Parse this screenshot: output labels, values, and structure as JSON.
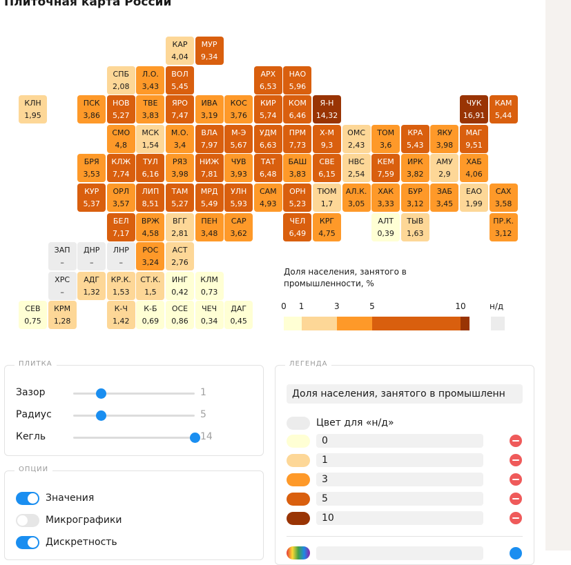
{
  "title": "Плиточная карта России",
  "tiles": [
    {
      "code": "КАР",
      "value": "4,04",
      "col": 5,
      "row": 0,
      "fill": "#fdd797"
    },
    {
      "code": "МУР",
      "value": "9,34",
      "col": 6,
      "row": 0,
      "fill": "#d95f0e",
      "dark": true
    },
    {
      "code": "СПБ",
      "value": "2,08",
      "col": 3,
      "row": 1,
      "fill": "#fdd797"
    },
    {
      "code": "Л.О.",
      "value": "3,43",
      "col": 4,
      "row": 1,
      "fill": "#fe9929"
    },
    {
      "code": "ВОЛ",
      "value": "5,45",
      "col": 5,
      "row": 1,
      "fill": "#d95f0e",
      "dark": true
    },
    {
      "code": "АРХ",
      "value": "6,53",
      "col": 8,
      "row": 1,
      "fill": "#d95f0e",
      "dark": true
    },
    {
      "code": "НАО",
      "value": "5,96",
      "col": 9,
      "row": 1,
      "fill": "#d95f0e",
      "dark": true
    },
    {
      "code": "КЛН",
      "value": "1,95",
      "col": 0,
      "row": 2,
      "fill": "#fdd797"
    },
    {
      "code": "ПСК",
      "value": "3,86",
      "col": 2,
      "row": 2,
      "fill": "#fe9929"
    },
    {
      "code": "НОВ",
      "value": "5,27",
      "col": 3,
      "row": 2,
      "fill": "#d95f0e",
      "dark": true
    },
    {
      "code": "ТВЕ",
      "value": "3,83",
      "col": 4,
      "row": 2,
      "fill": "#fe9929"
    },
    {
      "code": "ЯРО",
      "value": "7,47",
      "col": 5,
      "row": 2,
      "fill": "#d95f0e",
      "dark": true
    },
    {
      "code": "ИВА",
      "value": "3,19",
      "col": 6,
      "row": 2,
      "fill": "#fe9929"
    },
    {
      "code": "КОС",
      "value": "3,76",
      "col": 7,
      "row": 2,
      "fill": "#fe9929"
    },
    {
      "code": "КИР",
      "value": "5,74",
      "col": 8,
      "row": 2,
      "fill": "#d95f0e",
      "dark": true
    },
    {
      "code": "КОМ",
      "value": "6,46",
      "col": 9,
      "row": 2,
      "fill": "#d95f0e",
      "dark": true
    },
    {
      "code": "Я-Н",
      "value": "14,32",
      "col": 10,
      "row": 2,
      "fill": "#993404",
      "dark": true
    },
    {
      "code": "ЧУК",
      "value": "16,91",
      "col": 15,
      "row": 2,
      "fill": "#993404",
      "dark": true
    },
    {
      "code": "КАМ",
      "value": "5,44",
      "col": 16,
      "row": 2,
      "fill": "#d95f0e",
      "dark": true
    },
    {
      "code": "СМО",
      "value": "4,8",
      "col": 3,
      "row": 3,
      "fill": "#fe9929"
    },
    {
      "code": "МСК",
      "value": "1,54",
      "col": 4,
      "row": 3,
      "fill": "#fdd797"
    },
    {
      "code": "М.О.",
      "value": "3,4",
      "col": 5,
      "row": 3,
      "fill": "#fe9929"
    },
    {
      "code": "ВЛА",
      "value": "7,97",
      "col": 6,
      "row": 3,
      "fill": "#d95f0e",
      "dark": true
    },
    {
      "code": "М-Э",
      "value": "5,67",
      "col": 7,
      "row": 3,
      "fill": "#d95f0e",
      "dark": true
    },
    {
      "code": "УДМ",
      "value": "6,63",
      "col": 8,
      "row": 3,
      "fill": "#d95f0e",
      "dark": true
    },
    {
      "code": "ПРМ",
      "value": "7,73",
      "col": 9,
      "row": 3,
      "fill": "#d95f0e",
      "dark": true
    },
    {
      "code": "Х-М",
      "value": "9,3",
      "col": 10,
      "row": 3,
      "fill": "#d95f0e",
      "dark": true
    },
    {
      "code": "ОМС",
      "value": "2,43",
      "col": 11,
      "row": 3,
      "fill": "#fdd797"
    },
    {
      "code": "ТОМ",
      "value": "3,6",
      "col": 12,
      "row": 3,
      "fill": "#fe9929"
    },
    {
      "code": "КРА",
      "value": "5,43",
      "col": 13,
      "row": 3,
      "fill": "#d95f0e",
      "dark": true
    },
    {
      "code": "ЯКУ",
      "value": "3,98",
      "col": 14,
      "row": 3,
      "fill": "#fe9929"
    },
    {
      "code": "МАГ",
      "value": "9,51",
      "col": 15,
      "row": 3,
      "fill": "#d95f0e",
      "dark": true
    },
    {
      "code": "БРЯ",
      "value": "3,53",
      "col": 2,
      "row": 4,
      "fill": "#fe9929"
    },
    {
      "code": "КЛЖ",
      "value": "7,74",
      "col": 3,
      "row": 4,
      "fill": "#d95f0e",
      "dark": true
    },
    {
      "code": "ТУЛ",
      "value": "6,16",
      "col": 4,
      "row": 4,
      "fill": "#d95f0e",
      "dark": true
    },
    {
      "code": "РЯЗ",
      "value": "3,98",
      "col": 5,
      "row": 4,
      "fill": "#fe9929"
    },
    {
      "code": "НИЖ",
      "value": "7,81",
      "col": 6,
      "row": 4,
      "fill": "#d95f0e",
      "dark": true
    },
    {
      "code": "ЧУВ",
      "value": "3,93",
      "col": 7,
      "row": 4,
      "fill": "#fe9929"
    },
    {
      "code": "ТАТ",
      "value": "6,48",
      "col": 8,
      "row": 4,
      "fill": "#d95f0e",
      "dark": true
    },
    {
      "code": "БАШ",
      "value": "3,83",
      "col": 9,
      "row": 4,
      "fill": "#fe9929"
    },
    {
      "code": "СВЕ",
      "value": "6,15",
      "col": 10,
      "row": 4,
      "fill": "#d95f0e",
      "dark": true
    },
    {
      "code": "НВС",
      "value": "2,54",
      "col": 11,
      "row": 4,
      "fill": "#fdd797"
    },
    {
      "code": "КЕМ",
      "value": "7,59",
      "col": 12,
      "row": 4,
      "fill": "#d95f0e",
      "dark": true
    },
    {
      "code": "ИРК",
      "value": "3,82",
      "col": 13,
      "row": 4,
      "fill": "#fe9929"
    },
    {
      "code": "АМУ",
      "value": "2,9",
      "col": 14,
      "row": 4,
      "fill": "#fdd797"
    },
    {
      "code": "ХАБ",
      "value": "4,06",
      "col": 15,
      "row": 4,
      "fill": "#fe9929"
    },
    {
      "code": "КУР",
      "value": "5,37",
      "col": 2,
      "row": 5,
      "fill": "#d95f0e",
      "dark": true
    },
    {
      "code": "ОРЛ",
      "value": "3,57",
      "col": 3,
      "row": 5,
      "fill": "#fe9929"
    },
    {
      "code": "ЛИП",
      "value": "8,51",
      "col": 4,
      "row": 5,
      "fill": "#d95f0e",
      "dark": true
    },
    {
      "code": "ТАМ",
      "value": "5,27",
      "col": 5,
      "row": 5,
      "fill": "#d95f0e",
      "dark": true
    },
    {
      "code": "МРД",
      "value": "5,49",
      "col": 6,
      "row": 5,
      "fill": "#d95f0e",
      "dark": true
    },
    {
      "code": "УЛН",
      "value": "5,93",
      "col": 7,
      "row": 5,
      "fill": "#d95f0e",
      "dark": true
    },
    {
      "code": "САМ",
      "value": "4,93",
      "col": 8,
      "row": 5,
      "fill": "#fe9929"
    },
    {
      "code": "ОРН",
      "value": "5,23",
      "col": 9,
      "row": 5,
      "fill": "#d95f0e",
      "dark": true
    },
    {
      "code": "ТЮМ",
      "value": "1,7",
      "col": 10,
      "row": 5,
      "fill": "#fdd797"
    },
    {
      "code": "АЛ.К.",
      "value": "3,05",
      "col": 11,
      "row": 5,
      "fill": "#fe9929"
    },
    {
      "code": "ХАК",
      "value": "3,33",
      "col": 12,
      "row": 5,
      "fill": "#fe9929"
    },
    {
      "code": "БУР",
      "value": "3,12",
      "col": 13,
      "row": 5,
      "fill": "#fe9929"
    },
    {
      "code": "ЗАБ",
      "value": "3,45",
      "col": 14,
      "row": 5,
      "fill": "#fe9929"
    },
    {
      "code": "ЕАО",
      "value": "1,99",
      "col": 15,
      "row": 5,
      "fill": "#fdd797"
    },
    {
      "code": "САХ",
      "value": "3,58",
      "col": 16,
      "row": 5,
      "fill": "#fe9929"
    },
    {
      "code": "БЕЛ",
      "value": "7,17",
      "col": 3,
      "row": 6,
      "fill": "#d95f0e",
      "dark": true
    },
    {
      "code": "ВРЖ",
      "value": "4,58",
      "col": 4,
      "row": 6,
      "fill": "#fe9929"
    },
    {
      "code": "ВГГ",
      "value": "2,81",
      "col": 5,
      "row": 6,
      "fill": "#fdd797"
    },
    {
      "code": "ПЕН",
      "value": "3,48",
      "col": 6,
      "row": 6,
      "fill": "#fe9929"
    },
    {
      "code": "САР",
      "value": "3,62",
      "col": 7,
      "row": 6,
      "fill": "#fe9929"
    },
    {
      "code": "ЧЕЛ",
      "value": "6,49",
      "col": 9,
      "row": 6,
      "fill": "#d95f0e",
      "dark": true
    },
    {
      "code": "КРГ",
      "value": "4,75",
      "col": 10,
      "row": 6,
      "fill": "#fe9929"
    },
    {
      "code": "АЛТ",
      "value": "0,39",
      "col": 12,
      "row": 6,
      "fill": "#ffffd4"
    },
    {
      "code": "ТЫВ",
      "value": "1,63",
      "col": 13,
      "row": 6,
      "fill": "#fdd797"
    },
    {
      "code": "ПР.К.",
      "value": "3,12",
      "col": 16,
      "row": 6,
      "fill": "#fe9929"
    },
    {
      "code": "ЗАП",
      "value": "–",
      "col": 1,
      "row": 7,
      "fill": "#ececec"
    },
    {
      "code": "ДНР",
      "value": "–",
      "col": 2,
      "row": 7,
      "fill": "#ececec"
    },
    {
      "code": "ЛНР",
      "value": "–",
      "col": 3,
      "row": 7,
      "fill": "#ececec"
    },
    {
      "code": "РОС",
      "value": "3,24",
      "col": 4,
      "row": 7,
      "fill": "#fe9929"
    },
    {
      "code": "АСТ",
      "value": "2,76",
      "col": 5,
      "row": 7,
      "fill": "#fdd797"
    },
    {
      "code": "ХРС",
      "value": "–",
      "col": 1,
      "row": 8,
      "fill": "#ececec"
    },
    {
      "code": "АДГ",
      "value": "1,32",
      "col": 2,
      "row": 8,
      "fill": "#fdd797"
    },
    {
      "code": "КР.К.",
      "value": "1,53",
      "col": 3,
      "row": 8,
      "fill": "#fdd797"
    },
    {
      "code": "СТ.К.",
      "value": "1,5",
      "col": 4,
      "row": 8,
      "fill": "#fdd797"
    },
    {
      "code": "ИНГ",
      "value": "0,42",
      "col": 5,
      "row": 8,
      "fill": "#ffffd4"
    },
    {
      "code": "КЛМ",
      "value": "0,73",
      "col": 6,
      "row": 8,
      "fill": "#ffffd4"
    },
    {
      "code": "СЕВ",
      "value": "0,75",
      "col": 0,
      "row": 9,
      "fill": "#ffffd4"
    },
    {
      "code": "КРМ",
      "value": "1,28",
      "col": 1,
      "row": 9,
      "fill": "#fdd797"
    },
    {
      "code": "К-Ч",
      "value": "1,42",
      "col": 3,
      "row": 9,
      "fill": "#fdd797"
    },
    {
      "code": "К-Б",
      "value": "0,69",
      "col": 4,
      "row": 9,
      "fill": "#ffffd4"
    },
    {
      "code": "ОСЕ",
      "value": "0,86",
      "col": 5,
      "row": 9,
      "fill": "#ffffd4"
    },
    {
      "code": "ЧЕЧ",
      "value": "0,34",
      "col": 6,
      "row": 9,
      "fill": "#ffffd4"
    },
    {
      "code": "ДАГ",
      "value": "0,45",
      "col": 7,
      "row": 9,
      "fill": "#ffffd4"
    }
  ],
  "map_legend": {
    "title_line1": "Доля населения, занятого в",
    "title_line2": "промышленности, %",
    "ticks": [
      "0",
      "1",
      "3",
      "5",
      "10"
    ],
    "na_label": "н/д",
    "segments": [
      {
        "from": 0,
        "to": 1,
        "color": "#ffffd4"
      },
      {
        "from": 1,
        "to": 3,
        "color": "#fdd797"
      },
      {
        "from": 3,
        "to": 5,
        "color": "#fe9929"
      },
      {
        "from": 5,
        "to": 10,
        "color": "#d95f0e"
      },
      {
        "from": 10,
        "to": 10.5,
        "color": "#993404"
      }
    ],
    "na_color": "#ececec"
  },
  "tile_panel": {
    "title": "ПЛИТКА",
    "sliders": [
      {
        "label": "Зазор",
        "value": "1",
        "fraction": 0.23
      },
      {
        "label": "Радиус",
        "value": "5",
        "fraction": 0.23
      },
      {
        "label": "Кегль",
        "value": "14",
        "fraction": 1.0
      }
    ]
  },
  "options_panel": {
    "title": "ОПЦИИ",
    "toggles": [
      {
        "label": "Значения",
        "on": true
      },
      {
        "label": "Микрографики",
        "on": false
      },
      {
        "label": "Дискретность",
        "on": true
      }
    ]
  },
  "legend_panel": {
    "title": "ЛЕГЕНДА",
    "title_field_value": "Доля населения, занятого в промышленн",
    "na_color_label": "Цвет для «н/д»",
    "na_color": "#ececec",
    "stops": [
      {
        "value": "0",
        "color": "#ffffd4"
      },
      {
        "value": "1",
        "color": "#fdd797"
      },
      {
        "value": "3",
        "color": "#fe9929"
      },
      {
        "value": "5",
        "color": "#d95f0e"
      },
      {
        "value": "10",
        "color": "#993404"
      }
    ]
  },
  "colors": {
    "accent": "#1a8ef0",
    "remove": "#ef5a5a"
  }
}
